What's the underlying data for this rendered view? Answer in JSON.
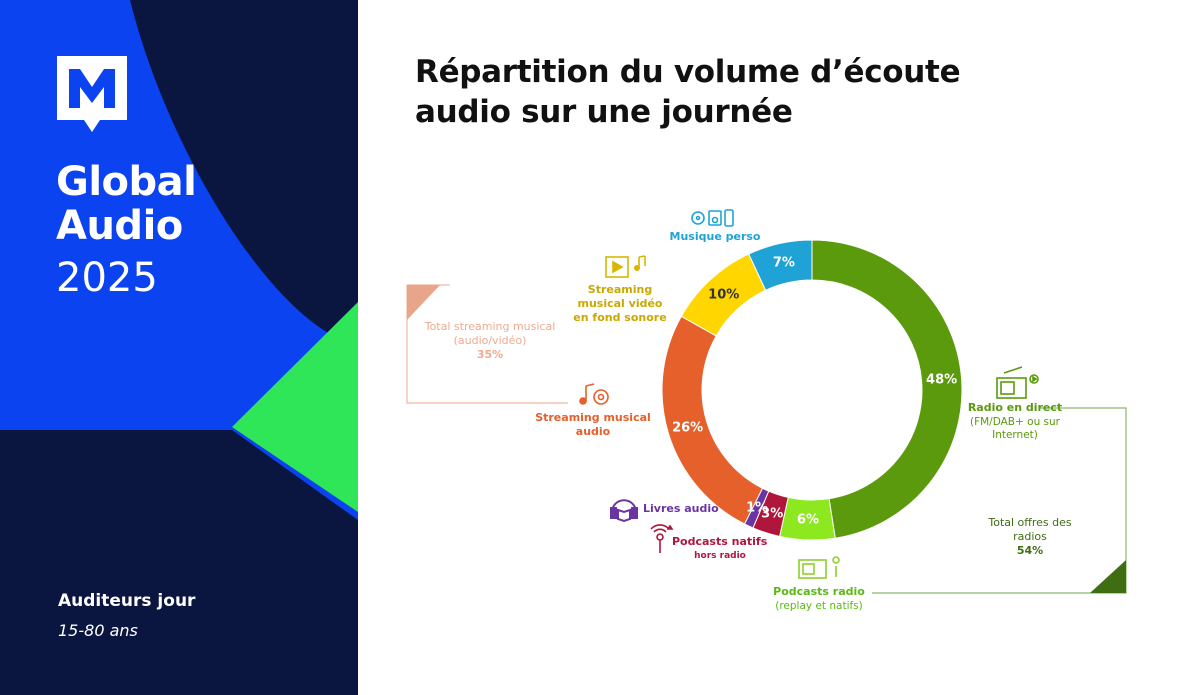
{
  "brand": {
    "title_line1": "Global",
    "title_line2": "Audio",
    "year": "2025",
    "logo_icon": "m-logo-icon",
    "audience_title": "Auditeurs jour",
    "audience_range": "15-80 ans",
    "colors": {
      "blue": "#0b43f0",
      "navy": "#0a1640",
      "green": "#2fe658"
    }
  },
  "main": {
    "title_line1": "Répartition du volume d’écoute",
    "title_line2": "audio sur une journée"
  },
  "labels": {
    "musique_perso": "Musique perso",
    "streaming_video_l1": "Streaming",
    "streaming_video_l2": "musical vidéo",
    "streaming_video_l3": "en fond sonore",
    "streaming_audio_l1": "Streaming musical",
    "streaming_audio_l2": "audio",
    "livres_audio": "Livres audio",
    "podcasts_natifs": "Podcasts natifs",
    "podcasts_natifs_sub": "hors radio",
    "podcasts_radio": "Podcasts radio",
    "podcasts_radio_sub": "(replay et natifs)",
    "radio_direct": "Radio en direct",
    "radio_direct_sub_l1": "(FM/DAB+ ou sur",
    "radio_direct_sub_l2": "Internet)",
    "total_radios_l1": "Total offres des",
    "total_radios_l2": "radios",
    "total_radios_value": "54%",
    "total_streaming_l1": "Total streaming musical",
    "total_streaming_l2": "(audio/vidéo)",
    "total_streaming_value": "35%"
  },
  "chart_data": {
    "type": "pie",
    "title": "Répartition du volume d’écoute audio sur une journée",
    "donut": true,
    "categories": [
      "Radio en direct",
      "Podcasts radio",
      "Podcasts natifs",
      "Livres audio",
      "Streaming musical audio",
      "Streaming musical vidéo en fond sonore",
      "Musique perso"
    ],
    "values": [
      48,
      6,
      3,
      1,
      26,
      10,
      7
    ],
    "value_labels": [
      "48%",
      "6%",
      "3%",
      "1%",
      "26%",
      "10%",
      "7%"
    ],
    "colors": [
      "#5a9a0c",
      "#8ee81f",
      "#b0163c",
      "#6a35a3",
      "#e5602a",
      "#ffd600",
      "#1fa3d6"
    ],
    "label_colors": [
      "#ffffff",
      "#ffffff",
      "#ffffff",
      "#ffffff",
      "#ffffff",
      "#333333",
      "#ffffff"
    ],
    "legend": "none"
  }
}
